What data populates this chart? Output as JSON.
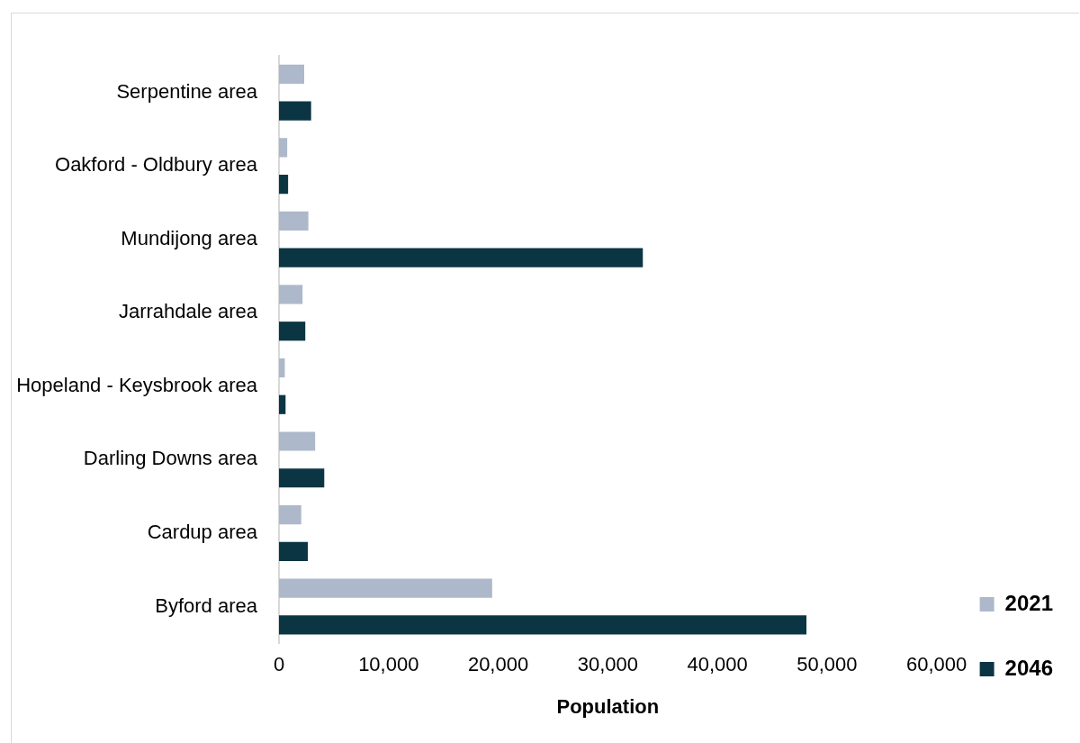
{
  "chart_data": {
    "type": "bar",
    "orientation": "horizontal",
    "xlabel": "Population",
    "categories": [
      "Serpentine area",
      "Oakford - Oldbury area",
      "Mundijong area",
      "Jarrahdale area",
      "Hopeland - Keysbrook area",
      "Darling Downs area",
      "Cardup area",
      "Byford area"
    ],
    "series": [
      {
        "name": "2021",
        "color": "#adb9ca",
        "values": [
          2300,
          750,
          2680,
          2150,
          530,
          3300,
          2030,
          19450
        ]
      },
      {
        "name": "2046",
        "color": "#0c3544",
        "values": [
          2930,
          830,
          33200,
          2400,
          600,
          4130,
          2630,
          48130
        ]
      }
    ],
    "xlim": [
      0,
      60000
    ],
    "xticks": [
      {
        "value": 0,
        "label": "0"
      },
      {
        "value": 10000,
        "label": "10,000"
      },
      {
        "value": 20000,
        "label": "20,000"
      },
      {
        "value": 30000,
        "label": "30,000"
      },
      {
        "value": 40000,
        "label": "40,000"
      },
      {
        "value": 50000,
        "label": "50,000"
      },
      {
        "value": 60000,
        "label": "60,000"
      }
    ],
    "grid": false,
    "legend": "right"
  }
}
